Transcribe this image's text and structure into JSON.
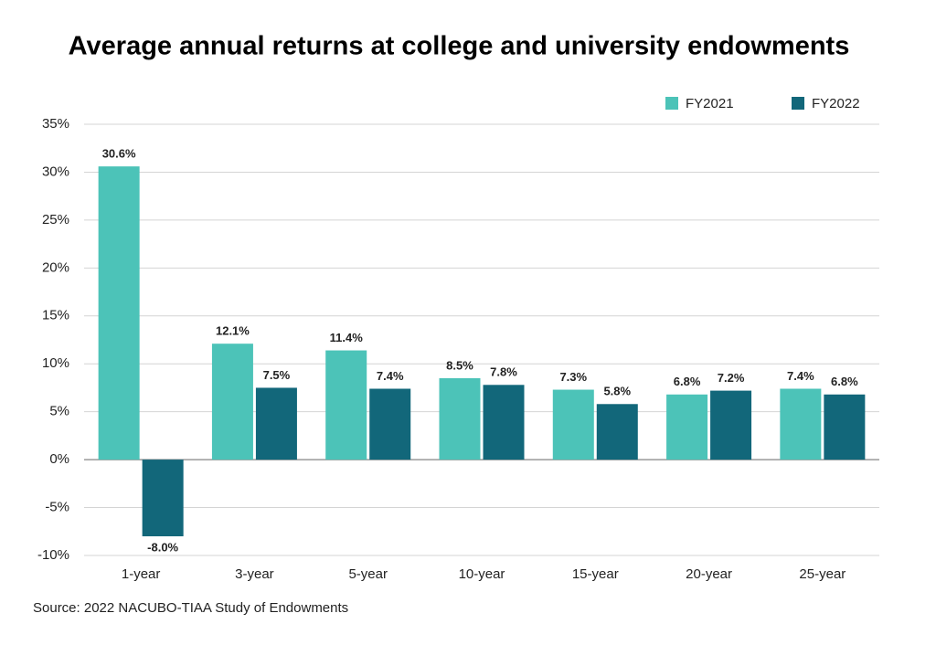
{
  "chart_data": {
    "type": "bar",
    "title": "Average annual returns at college and university endowments",
    "source": "Source: 2022 NACUBO-TIAA Study of Endowments",
    "categories": [
      "1-year",
      "3-year",
      "5-year",
      "10-year",
      "15-year",
      "20-year",
      "25-year"
    ],
    "series": [
      {
        "name": "FY2021",
        "color": "#4cc3b8",
        "values": [
          30.6,
          12.1,
          11.4,
          8.5,
          7.3,
          6.8,
          7.4
        ],
        "value_labels": [
          "30.6%",
          "12.1%",
          "11.4%",
          "8.5%",
          "7.3%",
          "6.8%",
          "7.4%"
        ]
      },
      {
        "name": "FY2022",
        "color": "#12677a",
        "values": [
          -8.0,
          7.5,
          7.4,
          7.8,
          5.8,
          7.2,
          6.8
        ],
        "value_labels": [
          "-8.0%",
          "7.5%",
          "7.4%",
          "7.8%",
          "5.8%",
          "7.2%",
          "6.8%"
        ]
      }
    ],
    "ylim": [
      -10,
      35
    ],
    "yticks": [
      {
        "value": -10,
        "label": "-10%"
      },
      {
        "value": -5,
        "label": "-5%"
      },
      {
        "value": 0,
        "label": "0%"
      },
      {
        "value": 5,
        "label": "5%"
      },
      {
        "value": 10,
        "label": "10%"
      },
      {
        "value": 15,
        "label": "15%"
      },
      {
        "value": 20,
        "label": "20%"
      },
      {
        "value": 25,
        "label": "25%"
      },
      {
        "value": 30,
        "label": "30%"
      },
      {
        "value": 35,
        "label": "35%"
      }
    ],
    "grid": true,
    "legend": "top-right"
  }
}
